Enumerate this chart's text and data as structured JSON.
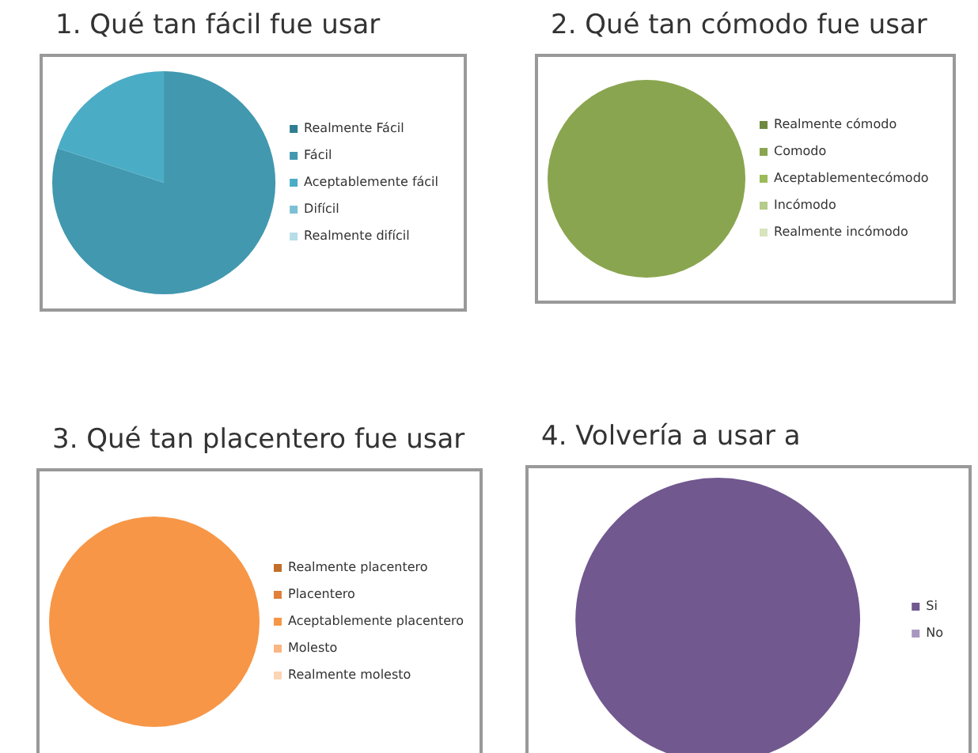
{
  "chart_data": [
    {
      "type": "pie",
      "title": "1. Qué tan fácil fue usar",
      "categories": [
        "Realmente Fácil",
        "Fácil",
        "Aceptablemente fácil",
        "Difícil",
        "Realmente difícil"
      ],
      "values": [
        0,
        80,
        20,
        0,
        0
      ],
      "colors": [
        "#2e7d91",
        "#4198af",
        "#4bacc6",
        "#7cc0d4",
        "#b7dde8"
      ],
      "legend": "right"
    },
    {
      "type": "pie",
      "title": "2. Qué tan cómodo fue usar",
      "categories": [
        "Realmente cómodo",
        "Comodo",
        "Aceptablementecómodo",
        "Incómodo",
        "Realmente incómodo"
      ],
      "values": [
        0,
        100,
        0,
        0,
        0
      ],
      "colors": [
        "#6f8a3e",
        "#8aa54f",
        "#9bbb59",
        "#b5cc8b",
        "#d7e4bd"
      ],
      "legend": "right"
    },
    {
      "type": "pie",
      "title": "3. Qué tan placentero fue usar",
      "categories": [
        "Realmente placentero",
        "Placentero",
        "Aceptablemente placentero",
        "Molesto",
        "Realmente molesto"
      ],
      "values": [
        0,
        0,
        100,
        0,
        0
      ],
      "colors": [
        "#c0702a",
        "#e0803a",
        "#f79646",
        "#f9b582",
        "#fcd5b5"
      ],
      "legend": "right"
    },
    {
      "type": "pie",
      "title": "4. Volvería a usar a",
      "categories": [
        "Si",
        "No"
      ],
      "values": [
        100,
        0
      ],
      "colors": [
        "#71588f",
        "#a897c0"
      ],
      "legend": "right"
    }
  ]
}
